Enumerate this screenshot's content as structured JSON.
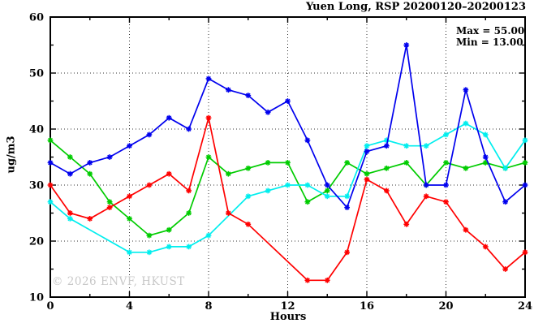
{
  "title": "Yuen Long, RSP 20200120–20200123",
  "annotations": {
    "max_label": "Max = 55.00",
    "min_label": "Min = 13.00"
  },
  "watermark": "© 2026 ENVF, HKUST",
  "colors": {
    "frame": "#000000",
    "grid": "#333333",
    "watermark": "#c8c8c8"
  },
  "chart_data": {
    "type": "line",
    "title": "Yuen Long, RSP 20200120–20200123",
    "xlabel": "Hours",
    "ylabel": "ug/m3",
    "xlim": [
      0,
      24
    ],
    "ylim": [
      10,
      60
    ],
    "x_major_ticks": [
      0,
      4,
      8,
      12,
      16,
      20,
      24
    ],
    "x_minor_ticks": [
      2,
      6,
      10,
      14,
      18,
      22
    ],
    "y_major_ticks": [
      10,
      20,
      30,
      40,
      50,
      60
    ],
    "y_minor_ticks": [
      15,
      25,
      35,
      45,
      55
    ],
    "x_gridlines": [
      4,
      8,
      12,
      16,
      20
    ],
    "y_gridlines": [
      20,
      30,
      40,
      50
    ],
    "grid_style": "dotted",
    "legend": "none",
    "marker": "asterisk",
    "stats": {
      "max": 55.0,
      "min": 13.0
    },
    "x": [
      0,
      1,
      2,
      3,
      4,
      5,
      6,
      7,
      8,
      9,
      10,
      11,
      12,
      13,
      14,
      15,
      16,
      17,
      18,
      19,
      20,
      21,
      22,
      23,
      24
    ],
    "series": [
      {
        "name": "series-green",
        "color": "#00cc00",
        "values": [
          38,
          35,
          32,
          27,
          24,
          21,
          22,
          25,
          35,
          32,
          33,
          34,
          34,
          27,
          29,
          34,
          32,
          33,
          34,
          30,
          34,
          33,
          34,
          33,
          34
        ]
      },
      {
        "name": "series-cyan",
        "color": "#00eeee",
        "values": [
          27,
          24,
          null,
          null,
          18,
          18,
          19,
          19,
          21,
          null,
          28,
          29,
          30,
          30,
          28,
          28,
          37,
          38,
          37,
          37,
          39,
          41,
          39,
          33,
          38
        ]
      },
      {
        "name": "series-red",
        "color": "#ff0000",
        "values": [
          30,
          25,
          24,
          26,
          28,
          30,
          32,
          29,
          42,
          25,
          23,
          null,
          null,
          13,
          13,
          18,
          31,
          29,
          23,
          28,
          27,
          22,
          19,
          15,
          18
        ]
      },
      {
        "name": "series-blue",
        "color": "#0000ee",
        "values": [
          34,
          32,
          34,
          35,
          37,
          39,
          42,
          40,
          49,
          47,
          46,
          43,
          45,
          38,
          30,
          26,
          36,
          37,
          55,
          30,
          30,
          47,
          35,
          27,
          30
        ]
      }
    ]
  }
}
